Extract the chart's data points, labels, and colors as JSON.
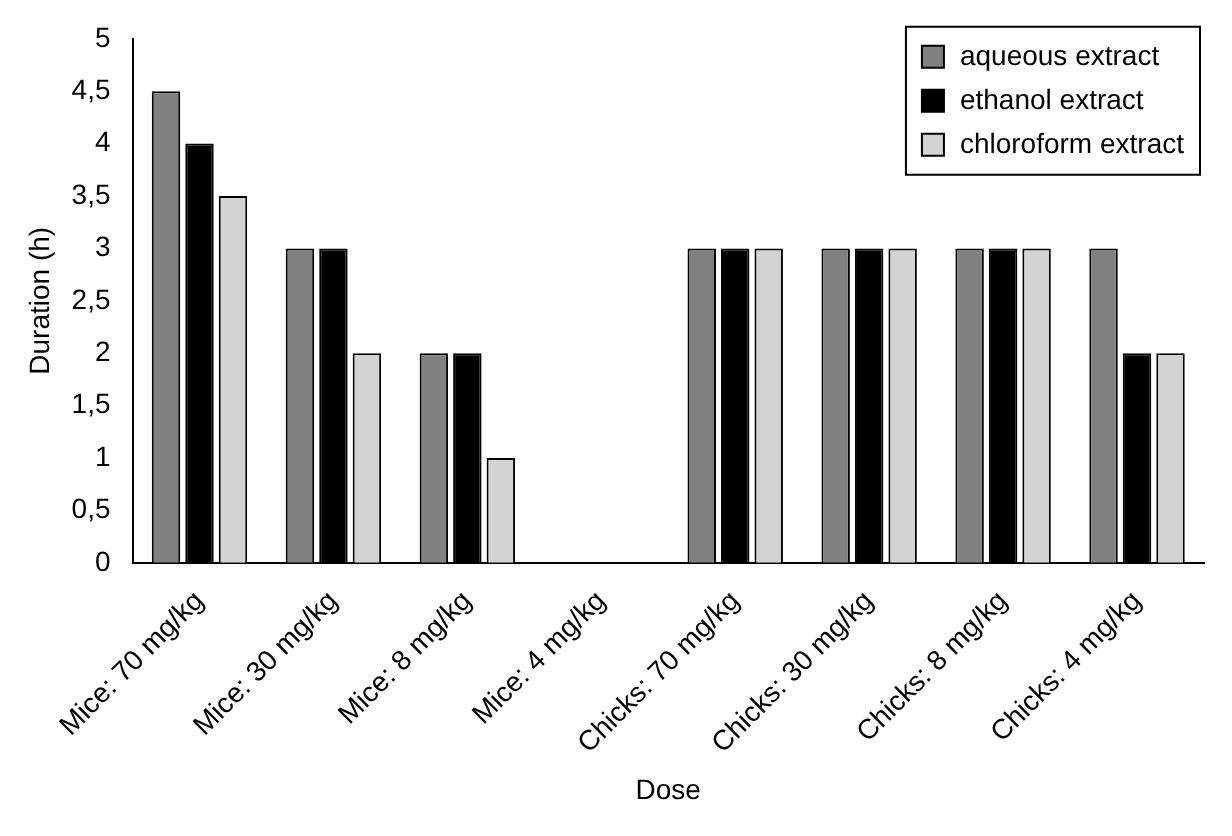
{
  "chart_data": {
    "type": "bar",
    "xlabel": "Dose",
    "ylabel": "Duration (h)",
    "categories": [
      "Mice: 70 mg/kg",
      "Mice: 30 mg/kg",
      "Mice: 8 mg/kg",
      "Mice: 4 mg/kg",
      "Chicks: 70 mg/kg",
      "Chicks: 30 mg/kg",
      "Chicks: 8 mg/kg",
      "Chicks: 4 mg/kg"
    ],
    "series": [
      {
        "name": "aqueous extract",
        "color": "#808080",
        "values": [
          4.5,
          3,
          2,
          0,
          3,
          3,
          3,
          3
        ]
      },
      {
        "name": "ethanol extract",
        "color": "#000000",
        "values": [
          4,
          3,
          2,
          0,
          3,
          3,
          3,
          2
        ]
      },
      {
        "name": "chloroform extract",
        "color": "#d3d3d3",
        "values": [
          3.5,
          2,
          1,
          0,
          3,
          3,
          3,
          2
        ]
      }
    ],
    "ylim": [
      0,
      5
    ],
    "yticks": [
      0,
      {
        "value": 0.5,
        "label": "0,5"
      },
      1,
      {
        "value": 1.5,
        "label": "1,5"
      },
      2,
      {
        "value": 2.5,
        "label": "2,5"
      },
      3,
      {
        "value": 3.5,
        "label": "3,5"
      },
      4,
      {
        "value": 4.5,
        "label": "4,5"
      },
      5
    ],
    "grid": false,
    "legend": "top right"
  }
}
